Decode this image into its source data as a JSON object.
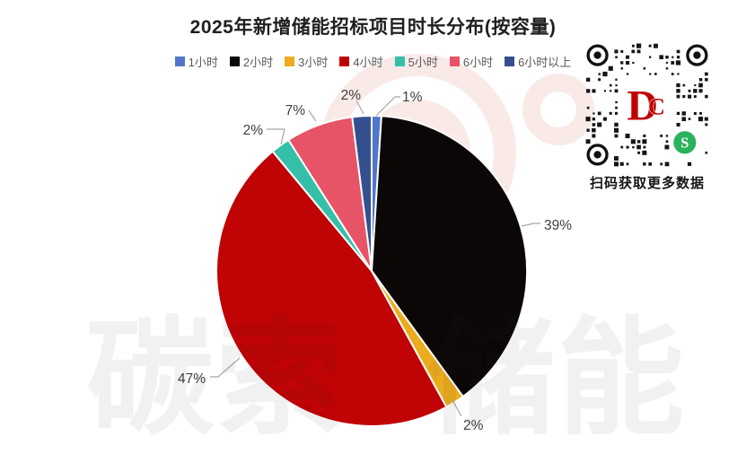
{
  "title": "2025年新增储能招标项目时长分布(按容量)",
  "chart_data": {
    "type": "pie",
    "title": "2025年新增储能招标项目时长分布(按容量)",
    "categories": [
      "1小时",
      "2小时",
      "3小时",
      "4小时",
      "5小时",
      "6小时",
      "6小时以上"
    ],
    "values": [
      1,
      39,
      2,
      47,
      2,
      7,
      2
    ],
    "unit": "%",
    "data_labels": [
      "1%",
      "39%",
      "2%",
      "47%",
      "2%",
      "7%",
      "2%"
    ],
    "colors": [
      "#5077C9",
      "#0B0707",
      "#ECAC1D",
      "#C00305",
      "#35BFA9",
      "#E85467",
      "#35508F"
    ],
    "start_angle_deg": 0,
    "direction": "clockwise",
    "legend_position": "top",
    "slice_border_color": "#FFFFFF",
    "label_color": "#3F3F3F",
    "leader_line_color": "#A6A6A6"
  },
  "qr_panel": {
    "caption": "扫码获取更多数据",
    "center_logo_text": "DC",
    "logo_color": "#C00000",
    "wechat_green": "#2BB25C"
  },
  "watermark": {
    "text": "碳索 储能"
  }
}
